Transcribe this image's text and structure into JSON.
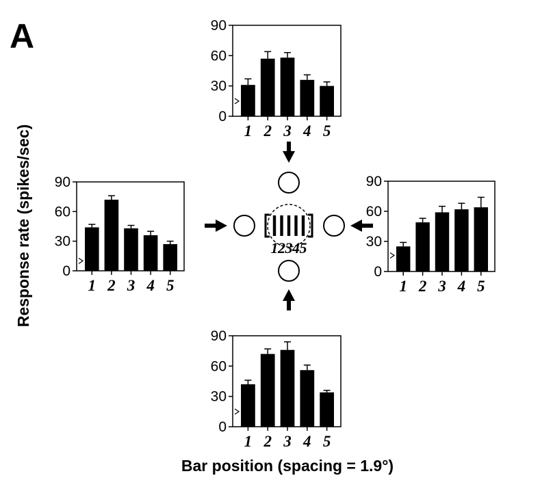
{
  "panel_label": "A",
  "y_axis_label": "Response rate (spikes/sec)",
  "x_axis_label": "Bar position (spacing = 1.9°)",
  "center_diagram": {
    "bar_labels": [
      "1",
      "2",
      "3",
      "4",
      "5"
    ]
  },
  "colors": {
    "bars": "#000000",
    "frame": "#000000",
    "background": "#ffffff"
  },
  "chart_data": [
    {
      "type": "bar",
      "flank_side": "top",
      "categories": [
        "1",
        "2",
        "3",
        "4",
        "5"
      ],
      "values": [
        31,
        57,
        58,
        36,
        30
      ],
      "errors": [
        6,
        7,
        5,
        5,
        4
      ],
      "baseline_marker": 15,
      "ylim": [
        0,
        90
      ],
      "yticks": [
        "0",
        "30",
        "60",
        "90"
      ]
    },
    {
      "type": "bar",
      "flank_side": "left",
      "categories": [
        "1",
        "2",
        "3",
        "4",
        "5"
      ],
      "values": [
        44,
        72,
        43,
        36,
        27
      ],
      "errors": [
        3,
        4,
        3,
        4,
        3
      ],
      "baseline_marker": 10,
      "ylim": [
        0,
        90
      ],
      "yticks": [
        "0",
        "30",
        "60",
        "90"
      ]
    },
    {
      "type": "bar",
      "flank_side": "right",
      "categories": [
        "1",
        "2",
        "3",
        "4",
        "5"
      ],
      "values": [
        25,
        49,
        59,
        62,
        64
      ],
      "errors": [
        4,
        4,
        6,
        6,
        10
      ],
      "baseline_marker": 16,
      "ylim": [
        0,
        90
      ],
      "yticks": [
        "0",
        "30",
        "60",
        "90"
      ]
    },
    {
      "type": "bar",
      "flank_side": "bottom",
      "categories": [
        "1",
        "2",
        "3",
        "4",
        "5"
      ],
      "values": [
        42,
        72,
        76,
        56,
        34
      ],
      "errors": [
        4,
        5,
        8,
        5,
        2
      ],
      "baseline_marker": 15,
      "ylim": [
        0,
        90
      ],
      "yticks": [
        "0",
        "30",
        "60",
        "90"
      ]
    }
  ]
}
